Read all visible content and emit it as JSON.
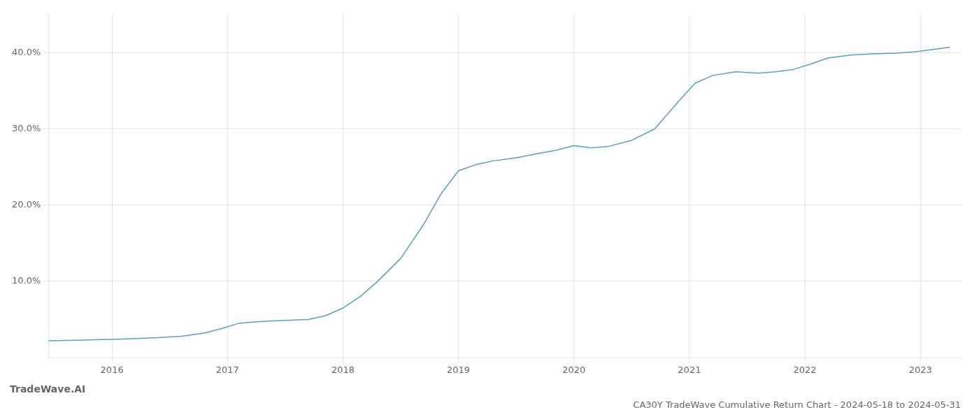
{
  "chart_data": {
    "type": "line",
    "title": "CA30Y TradeWave Cumulative Return Chart - 2024-05-18 to 2024-05-31",
    "annotations": [
      "TradeWave.AI"
    ],
    "x": [
      2015.45,
      2015.6,
      2015.75,
      2015.9,
      2016.05,
      2016.2,
      2016.4,
      2016.6,
      2016.8,
      2016.95,
      2017.1,
      2017.25,
      2017.4,
      2017.55,
      2017.7,
      2017.85,
      2018.0,
      2018.15,
      2018.3,
      2018.5,
      2018.7,
      2018.85,
      2019.0,
      2019.15,
      2019.3,
      2019.5,
      2019.7,
      2019.85,
      2020.0,
      2020.15,
      2020.3,
      2020.5,
      2020.7,
      2020.9,
      2021.05,
      2021.2,
      2021.4,
      2021.6,
      2021.75,
      2021.9,
      2022.05,
      2022.2,
      2022.4,
      2022.6,
      2022.8,
      2022.95,
      2023.1,
      2023.25
    ],
    "values": [
      2.2,
      2.25,
      2.3,
      2.35,
      2.4,
      2.5,
      2.6,
      2.8,
      3.2,
      3.8,
      4.5,
      4.7,
      4.8,
      4.9,
      5.0,
      5.5,
      6.5,
      8.0,
      10.0,
      13.0,
      17.5,
      21.5,
      24.5,
      25.3,
      25.8,
      26.2,
      26.8,
      27.2,
      27.8,
      27.5,
      27.7,
      28.5,
      30.0,
      33.5,
      36.0,
      37.0,
      37.5,
      37.3,
      37.5,
      37.8,
      38.5,
      39.3,
      39.7,
      39.85,
      39.95,
      40.1,
      40.4,
      40.7
    ],
    "color": "#5b9fc0",
    "xlim": [
      2015.45,
      2023.35
    ],
    "xticks": [
      2016,
      2017,
      2018,
      2019,
      2020,
      2021,
      2022,
      2023
    ],
    "ylim": [
      0.0,
      45.0
    ],
    "yticks": [
      {
        "value": 10.0,
        "label": "10.0%"
      },
      {
        "value": 20.0,
        "label": "20.0%"
      },
      {
        "value": 30.0,
        "label": "30.0%"
      },
      {
        "value": 40.0,
        "label": "40.0%"
      }
    ],
    "grid": true
  }
}
